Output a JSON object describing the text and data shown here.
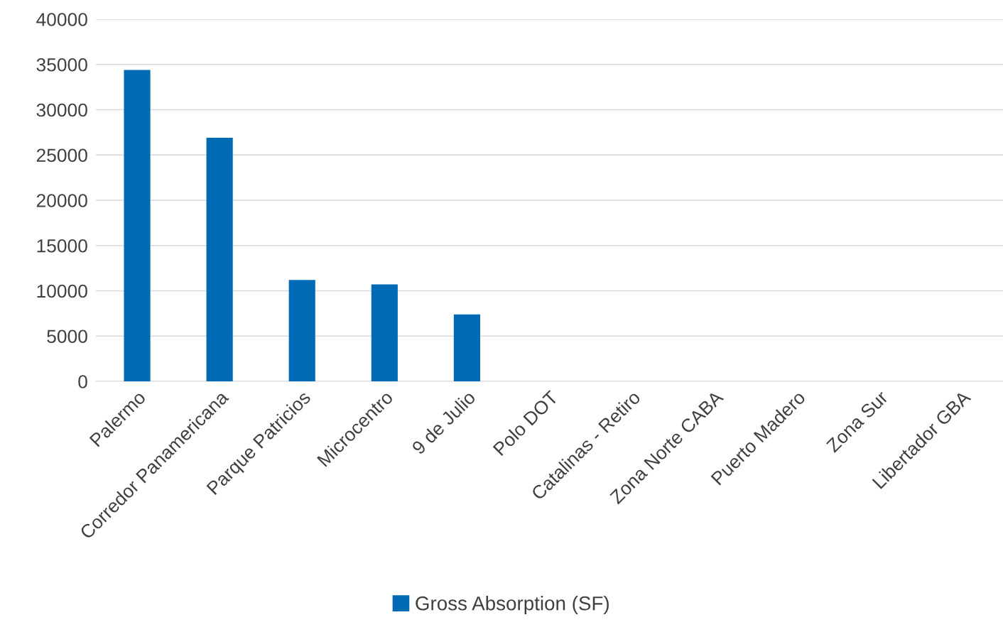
{
  "chart_data": {
    "type": "bar",
    "categories": [
      "Palermo",
      "Corredor Panamericana",
      "Parque Patricios",
      "Microcentro",
      "9 de Julio",
      "Polo DOT",
      "Catalinas - Retiro",
      "Zona Norte CABA",
      "Puerto Madero",
      "Zona Sur",
      "Libertador GBA"
    ],
    "series": [
      {
        "name": "Gross Absorption (SF)",
        "color": "#006ab4",
        "values": [
          34400,
          26900,
          11200,
          10700,
          7400,
          0,
          0,
          0,
          0,
          0,
          0
        ]
      }
    ],
    "ylim": [
      0,
      40000
    ],
    "yticks": [
      0,
      5000,
      10000,
      15000,
      20000,
      25000,
      30000,
      35000,
      40000
    ],
    "grid": "y",
    "legend": "bottom"
  }
}
